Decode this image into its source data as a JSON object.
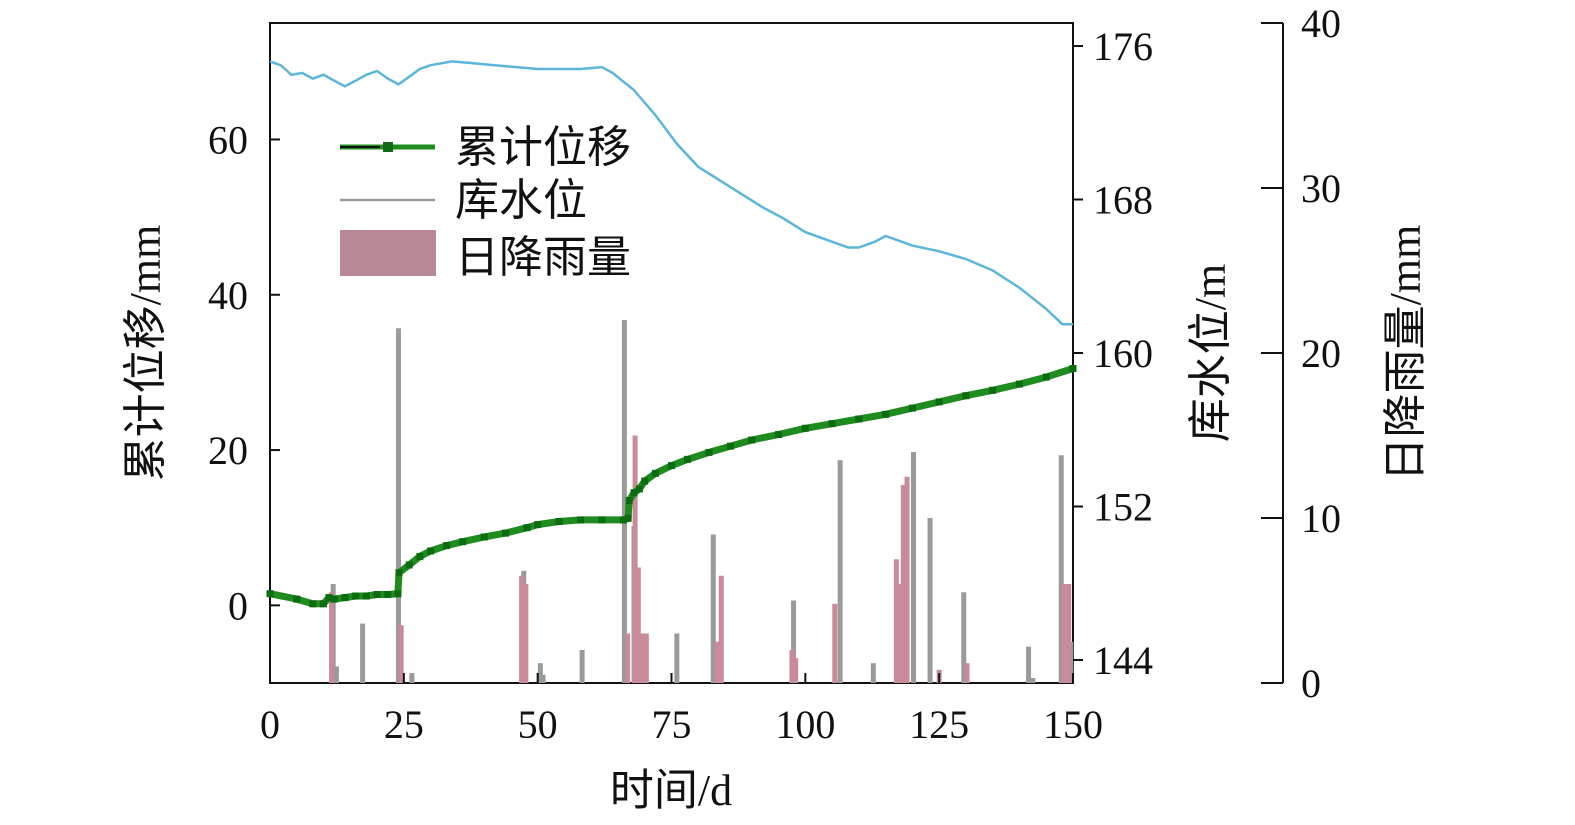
{
  "chart_data": {
    "type": "line",
    "xlabel": "时间/d",
    "x_ticks": [
      "0",
      "25",
      "50",
      "75",
      "100",
      "125",
      "150"
    ],
    "xlim": [
      0,
      150
    ],
    "axes": {
      "left": {
        "label": "累计位移/mm",
        "ticks": [
          "0",
          "20",
          "40",
          "60"
        ],
        "ylim": [
          -10,
          75
        ]
      },
      "right1": {
        "label": "库水位/m",
        "ticks": [
          "144",
          "152",
          "160",
          "168",
          "176"
        ],
        "ylim": [
          142.8,
          177.2
        ]
      },
      "right2": {
        "label": "日降雨量/mm",
        "ticks": [
          "0",
          "10",
          "20",
          "30",
          "40"
        ],
        "ylim": [
          0,
          40
        ]
      }
    },
    "legend": {
      "placement": "top-left",
      "entries": [
        "累计位移",
        "库水位",
        "日降雨量"
      ]
    },
    "colors": {
      "displacement": "#1e8c1e",
      "displacement_marker": "#0d6b12",
      "water_level": "#5bb6d9",
      "rain_pink": "#c98a9a",
      "rain_gray": "#9a9a9a",
      "axis": "#111111"
    },
    "series": [
      {
        "name": "累计位移",
        "axis": "left",
        "x": [
          0,
          5,
          8,
          10,
          11,
          12,
          14,
          16,
          18,
          20,
          22,
          23.9,
          24.1,
          26,
          28,
          30,
          33,
          36,
          40,
          44,
          48,
          50,
          54,
          58,
          62,
          66,
          66.9,
          67.1,
          68,
          69,
          70,
          72,
          75,
          78,
          82,
          86,
          90,
          95,
          100,
          105,
          110,
          115,
          120,
          125,
          130,
          135,
          140,
          145,
          150
        ],
        "values": [
          1.5,
          0.8,
          0.2,
          0.2,
          1.0,
          0.8,
          1.0,
          1.2,
          1.2,
          1.4,
          1.4,
          1.5,
          4.2,
          5.2,
          6.3,
          7.0,
          7.7,
          8.2,
          8.8,
          9.3,
          10.0,
          10.4,
          10.8,
          11.0,
          11.0,
          11.0,
          11.2,
          13.5,
          14.5,
          15.0,
          16.0,
          17.0,
          18.0,
          18.8,
          19.7,
          20.5,
          21.3,
          22.0,
          22.8,
          23.4,
          24.0,
          24.6,
          25.4,
          26.2,
          27.0,
          27.7,
          28.5,
          29.4,
          30.5
        ]
      },
      {
        "name": "库水位",
        "axis": "right1",
        "x": [
          0,
          2,
          4,
          6,
          8,
          10,
          12,
          14,
          16,
          18,
          20,
          22,
          24,
          26,
          28,
          30,
          34,
          38,
          42,
          46,
          50,
          54,
          58,
          62,
          64,
          68,
          72,
          76,
          80,
          84,
          88,
          92,
          96,
          100,
          104,
          108,
          110,
          113,
          115,
          117,
          120,
          125,
          130,
          135,
          140,
          145,
          148,
          150
        ],
        "values": [
          175.2,
          175.0,
          174.5,
          174.6,
          174.3,
          174.5,
          174.2,
          173.9,
          174.2,
          174.5,
          174.7,
          174.3,
          174.0,
          174.4,
          174.8,
          175.0,
          175.2,
          175.1,
          175.0,
          174.9,
          174.8,
          174.8,
          174.8,
          174.9,
          174.6,
          173.7,
          172.4,
          170.9,
          169.7,
          169.0,
          168.3,
          167.6,
          167.0,
          166.3,
          165.9,
          165.5,
          165.5,
          165.8,
          166.1,
          165.9,
          165.6,
          165.3,
          164.9,
          164.3,
          163.4,
          162.3,
          161.5,
          161.5
        ]
      },
      {
        "name": "日降雨量",
        "axis": "right2",
        "type": "bar",
        "pink": [
          {
            "x": 11.5,
            "value": 5.5
          },
          {
            "x": 24.5,
            "value": 3.5
          },
          {
            "x": 47,
            "value": 6.5
          },
          {
            "x": 47.8,
            "value": 6.0
          },
          {
            "x": 66.8,
            "value": 3.0
          },
          {
            "x": 68.2,
            "value": 15.0
          },
          {
            "x": 68.8,
            "value": 7.0
          },
          {
            "x": 69.6,
            "value": 3.0
          },
          {
            "x": 70.3,
            "value": 3.0
          },
          {
            "x": 83.6,
            "value": 2.5
          },
          {
            "x": 84.3,
            "value": 6.5
          },
          {
            "x": 97.5,
            "value": 2.0
          },
          {
            "x": 98.2,
            "value": 1.5
          },
          {
            "x": 105.5,
            "value": 4.8
          },
          {
            "x": 117.0,
            "value": 7.5
          },
          {
            "x": 117.6,
            "value": 6.0
          },
          {
            "x": 118.3,
            "value": 12.0
          },
          {
            "x": 119.0,
            "value": 12.5
          },
          {
            "x": 125.0,
            "value": 0.8
          },
          {
            "x": 130.2,
            "value": 1.2
          },
          {
            "x": 148.3,
            "value": 6.0
          },
          {
            "x": 149.2,
            "value": 6.0
          }
        ],
        "gray": [
          {
            "x": 11.8,
            "value": 6.0
          },
          {
            "x": 12.4,
            "value": 1.0
          },
          {
            "x": 17.3,
            "value": 3.6
          },
          {
            "x": 24.0,
            "value": 21.5
          },
          {
            "x": 26.5,
            "value": 0.6
          },
          {
            "x": 47.4,
            "value": 6.8
          },
          {
            "x": 50.5,
            "value": 1.2
          },
          {
            "x": 51.0,
            "value": 0.5
          },
          {
            "x": 58.3,
            "value": 2.0
          },
          {
            "x": 66.2,
            "value": 22.0
          },
          {
            "x": 68.0,
            "value": 9.5
          },
          {
            "x": 76.0,
            "value": 3.0
          },
          {
            "x": 82.8,
            "value": 9.0
          },
          {
            "x": 97.8,
            "value": 5.0
          },
          {
            "x": 106.5,
            "value": 13.5
          },
          {
            "x": 112.7,
            "value": 1.2
          },
          {
            "x": 120.2,
            "value": 14.0
          },
          {
            "x": 123.3,
            "value": 10.0
          },
          {
            "x": 129.6,
            "value": 5.5
          },
          {
            "x": 141.7,
            "value": 2.2
          },
          {
            "x": 142.5,
            "value": 0.3
          },
          {
            "x": 147.8,
            "value": 13.8
          },
          {
            "x": 149.6,
            "value": 2.5
          }
        ]
      }
    ]
  }
}
